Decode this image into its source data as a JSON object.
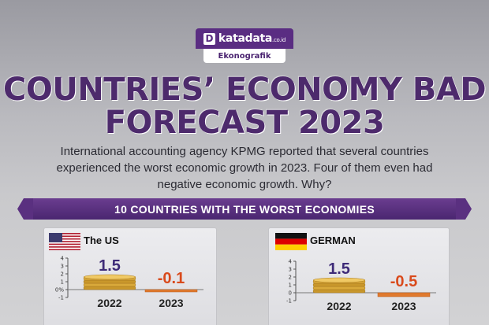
{
  "logo": {
    "mark": "D",
    "name": "katadata",
    "suffix": ".co.id",
    "tag": "Ekonografik"
  },
  "title": {
    "line1": "COUNTRIES’ ECONOMY BAD",
    "line2": "FORECAST 2023"
  },
  "intro": {
    "line1": "International accounting agency KPMG reported that several countries",
    "line2": "experienced the worst economic growth in 2023. Four of them even had",
    "line3": "negative economic growth. Why?"
  },
  "banner": {
    "label": "10 COUNTRIES WITH THE WORST ECONOMIES"
  },
  "colors": {
    "title": "#4d2a6c",
    "banner": "#4a2670",
    "positive_value": "#3e2b78",
    "negative_value": "#d94a1c",
    "coin_gold": "#d9a93a",
    "negative_bar": "#e07a2e"
  },
  "chart_data": [
    {
      "type": "bar",
      "country": "The US",
      "flag_icon": "us-flag-icon",
      "categories": [
        "2022",
        "2023"
      ],
      "values": [
        1.5,
        -0.1
      ],
      "value_labels": [
        "1.5",
        "-0.1"
      ],
      "y_ticks": [
        "4",
        "3",
        "2",
        "1",
        "0%",
        "-1"
      ],
      "ylim": [
        -1,
        4
      ]
    },
    {
      "type": "bar",
      "country": "GERMAN",
      "flag_icon": "germany-flag-icon",
      "categories": [
        "2022",
        "2023"
      ],
      "values": [
        1.5,
        -0.5
      ],
      "value_labels": [
        "1.5",
        "-0.5"
      ],
      "y_ticks": [
        "4",
        "3",
        "2",
        "1",
        "0",
        "-1"
      ],
      "ylim": [
        -1,
        4
      ]
    }
  ]
}
